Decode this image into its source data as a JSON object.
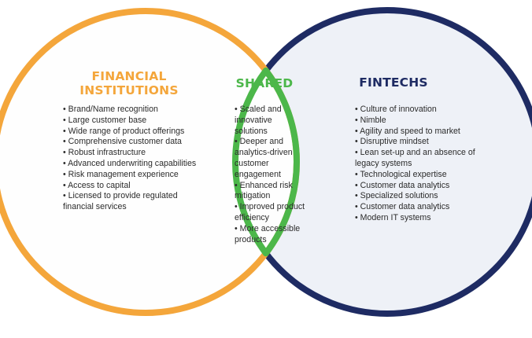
{
  "colors": {
    "financial": "#F4A63B",
    "shared": "#4CB74A",
    "fintech": "#1E2B63",
    "fintech_fill": "#EEF1F7",
    "financial_fill": "#FEFEFE"
  },
  "financial_institutions": {
    "title_line1": "FINANCIAL",
    "title_line2": "INSTITUTIONS",
    "items": [
      "Brand/Name recognition",
      "Large customer base",
      "Wide range of product offerings",
      "Comprehensive customer data",
      "Robust infrastructure",
      "Advanced underwriting capabilities",
      "Risk management experience",
      "Access to capital",
      "Licensed to provide regulated financial services"
    ]
  },
  "shared": {
    "title": "SHARED",
    "items": [
      "Scaled and innovative solutions",
      "Deeper and analytics-driven customer engagement",
      "Enhanced risk mitigation",
      "Improved product efficiency",
      "More accessible products"
    ]
  },
  "fintechs": {
    "title": "FINTECHS",
    "items": [
      "Culture of innovation",
      "Nimble",
      "Agility and speed to market",
      "Disruptive mindset",
      "Lean set-up and an absence of legacy systems",
      "Technological expertise",
      "Customer data analytics",
      "Specialized solutions",
      "Customer data analytics",
      "Modern IT systems"
    ]
  }
}
